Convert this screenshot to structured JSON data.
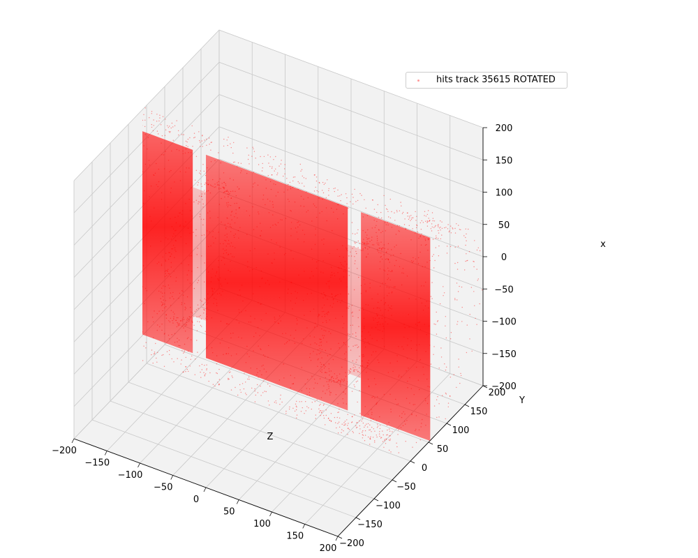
{
  "chart_data": {
    "type": "scatter",
    "projection": "3d",
    "description_series": "point cloud of hits forming a cylinder tube along Z axis",
    "series": [
      {
        "name": "hits track 35615 ROTATED",
        "color": "#ff0000",
        "shape": "cylinder",
        "axis": "Z",
        "segments": [
          {
            "z_start": -330,
            "z_end": -130,
            "radius": 150
          },
          {
            "z_start": -130,
            "z_end": -110,
            "radius": 95
          },
          {
            "z_start": -110,
            "z_end": 105,
            "radius": 150
          },
          {
            "z_start": 105,
            "z_end": 125,
            "radius": 95
          },
          {
            "z_start": 125,
            "z_end": 230,
            "radius": 150
          }
        ]
      }
    ],
    "xlabel": "Z",
    "ylabel": "Y",
    "zlabel": "x",
    "xlim": [
      -200,
      200
    ],
    "ylim": [
      -200,
      200
    ],
    "zlim": [
      -200,
      200
    ],
    "z_ticks": [
      -200,
      -150,
      -100,
      -50,
      0,
      50,
      100,
      150,
      200
    ],
    "y_ticks": [
      -200,
      -150,
      -100,
      -50,
      0,
      50,
      100,
      150,
      200
    ],
    "x_ticks": [
      -200,
      -150,
      -100,
      -50,
      0,
      50,
      100,
      150,
      200
    ],
    "x_tick_labels": [
      "−200",
      "−150",
      "−100",
      "−50",
      "0",
      "50",
      "100",
      "150",
      "200"
    ],
    "y_tick_labels": [
      "−200",
      "−150",
      "−100",
      "−50",
      "0",
      "50",
      "100",
      "150",
      "200"
    ],
    "z_tick_labels": [
      "−200",
      "−150",
      "−100",
      "−50",
      "0",
      "50",
      "100",
      "150",
      "200"
    ],
    "legend": {
      "label": "hits track 35615 ROTATED",
      "loc": "upper-right"
    },
    "grid": true
  }
}
